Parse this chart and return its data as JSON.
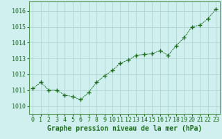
{
  "x": [
    0,
    1,
    2,
    3,
    4,
    5,
    6,
    7,
    8,
    9,
    10,
    11,
    12,
    13,
    14,
    15,
    16,
    17,
    18,
    19,
    20,
    21,
    22,
    23
  ],
  "y": [
    1011.1,
    1011.5,
    1011.0,
    1011.0,
    1010.7,
    1010.6,
    1010.4,
    1010.85,
    1011.5,
    1011.9,
    1012.25,
    1012.7,
    1012.9,
    1013.2,
    1013.25,
    1013.3,
    1013.5,
    1013.2,
    1013.8,
    1014.3,
    1015.0,
    1015.1,
    1015.5,
    1016.1
  ],
  "ylim": [
    1009.5,
    1016.6
  ],
  "xlim": [
    -0.5,
    23.5
  ],
  "yticks": [
    1010,
    1011,
    1012,
    1013,
    1014,
    1015,
    1016
  ],
  "xticks": [
    0,
    1,
    2,
    3,
    4,
    5,
    6,
    7,
    8,
    9,
    10,
    11,
    12,
    13,
    14,
    15,
    16,
    17,
    18,
    19,
    20,
    21,
    22,
    23
  ],
  "xlabel": "Graphe pression niveau de la mer (hPa)",
  "line_color": "#1a6b1a",
  "marker": "+",
  "marker_size": 4,
  "bg_color": "#cff0ee",
  "grid_color": "#aacfcc",
  "label_color": "#1a6b1a",
  "xlabel_fontsize": 7,
  "tick_fontsize": 6
}
